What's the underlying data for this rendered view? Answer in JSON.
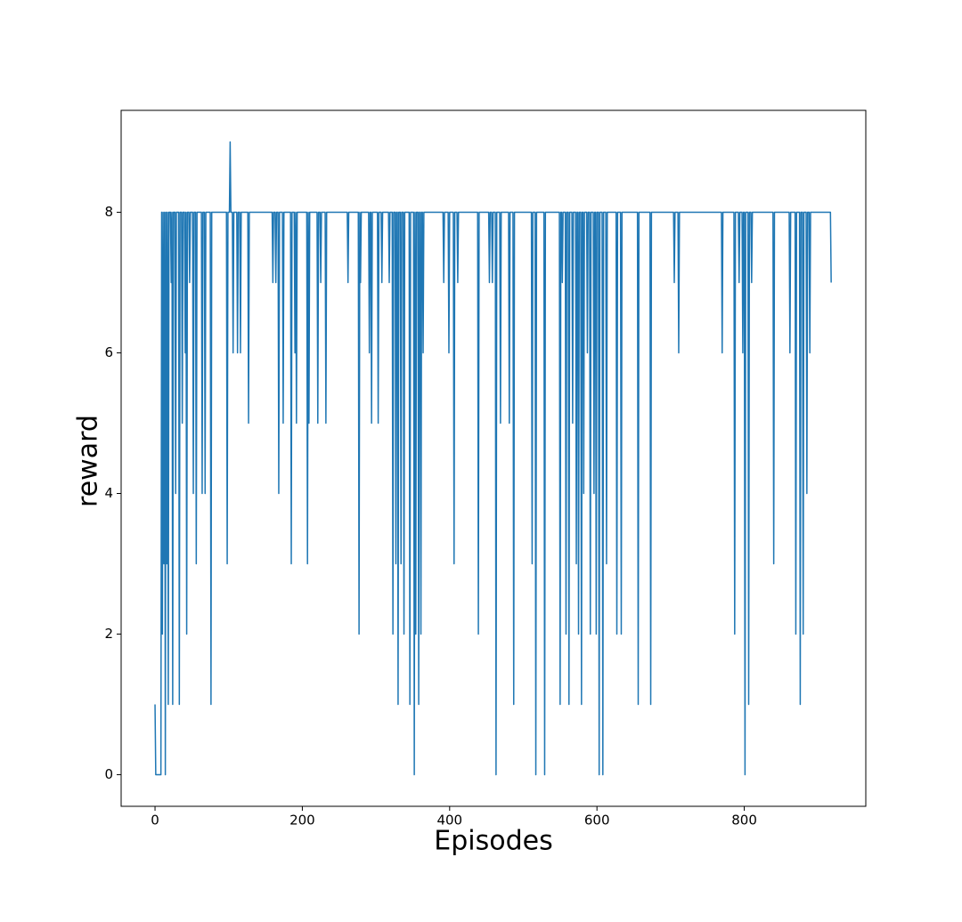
{
  "chart_data": {
    "type": "line",
    "xlabel": "Episodes",
    "ylabel": "reward",
    "xlim": [
      -46,
      965
    ],
    "ylim": [
      -0.45,
      9.45
    ],
    "xticks": [
      0,
      200,
      400,
      600,
      800
    ],
    "yticks": [
      0,
      2,
      4,
      6,
      8
    ],
    "series": [
      {
        "color": "#1f77b4",
        "x": [
          0,
          1,
          8,
          9,
          10,
          11,
          12,
          13,
          14,
          15,
          16,
          17,
          18,
          19,
          21,
          22,
          23,
          24,
          25,
          27,
          28,
          29,
          32,
          33,
          34,
          36,
          37,
          38,
          40,
          41,
          42,
          43,
          44,
          46,
          47,
          48,
          51,
          52,
          53,
          55,
          56,
          57,
          63,
          64,
          65,
          67,
          68,
          69,
          75,
          76,
          77,
          97,
          98,
          99,
          101,
          102,
          103,
          105,
          106,
          107,
          111,
          112,
          113,
          115,
          116,
          117,
          126,
          127,
          128,
          159,
          160,
          161,
          163,
          164,
          165,
          167,
          168,
          169,
          173,
          174,
          175,
          184,
          185,
          186,
          189,
          190,
          191,
          192,
          193,
          206,
          207,
          208,
          209,
          210,
          220,
          221,
          222,
          224,
          225,
          226,
          231,
          232,
          233,
          261,
          262,
          263,
          276,
          277,
          278,
          279,
          280,
          290,
          291,
          292,
          293,
          294,
          295,
          302,
          303,
          304,
          307,
          308,
          309,
          317,
          318,
          319,
          322,
          323,
          324,
          326,
          327,
          328,
          329,
          330,
          331,
          333,
          334,
          335,
          337,
          338,
          339,
          345,
          346,
          347,
          351,
          352,
          353,
          354,
          355,
          357,
          358,
          359,
          360,
          361,
          362,
          363,
          364,
          365,
          391,
          392,
          393,
          398,
          399,
          400,
          405,
          406,
          407,
          410,
          411,
          412,
          438,
          439,
          440,
          453,
          454,
          455,
          457,
          458,
          459,
          462,
          463,
          464,
          468,
          469,
          470,
          480,
          481,
          482,
          486,
          487,
          488,
          511,
          512,
          513,
          516,
          517,
          518,
          528,
          529,
          530,
          549,
          550,
          551,
          552,
          553,
          554,
          557,
          558,
          559,
          561,
          562,
          563,
          566,
          567,
          568,
          571,
          572,
          573,
          574,
          575,
          576,
          578,
          579,
          580,
          581,
          582,
          583,
          586,
          587,
          588,
          590,
          591,
          592,
          595,
          596,
          597,
          598,
          599,
          600,
          602,
          603,
          604,
          607,
          608,
          609,
          612,
          613,
          614,
          626,
          627,
          628,
          632,
          633,
          634,
          655,
          656,
          657,
          672,
          673,
          674,
          704,
          705,
          706,
          710,
          711,
          712,
          769,
          770,
          771,
          786,
          787,
          788,
          792,
          793,
          794,
          797,
          798,
          799,
          800,
          801,
          802,
          805,
          806,
          807,
          809,
          810,
          811,
          839,
          840,
          841,
          861,
          862,
          863,
          869,
          870,
          871,
          875,
          876,
          877,
          879,
          880,
          881,
          884,
          885,
          886,
          888,
          889,
          890,
          917,
          918
        ],
        "values": [
          1,
          0,
          0,
          8,
          2,
          8,
          3,
          8,
          0,
          8,
          3,
          8,
          1,
          8,
          8,
          7,
          8,
          1,
          8,
          8,
          4,
          8,
          8,
          1,
          8,
          8,
          5,
          8,
          8,
          6,
          8,
          2,
          8,
          8,
          7,
          8,
          8,
          4,
          8,
          8,
          3,
          8,
          8,
          4,
          8,
          8,
          4,
          8,
          8,
          1,
          8,
          8,
          3,
          8,
          8,
          9,
          8,
          8,
          6,
          8,
          8,
          6,
          8,
          8,
          6,
          8,
          8,
          5,
          8,
          8,
          7,
          8,
          8,
          7,
          8,
          8,
          4,
          8,
          8,
          5,
          8,
          8,
          3,
          8,
          8,
          6,
          8,
          5,
          8,
          8,
          3,
          8,
          5,
          8,
          8,
          5,
          8,
          8,
          7,
          8,
          8,
          5,
          8,
          8,
          7,
          8,
          8,
          2,
          8,
          7,
          8,
          8,
          6,
          8,
          8,
          5,
          8,
          8,
          5,
          8,
          8,
          7,
          8,
          8,
          7,
          8,
          8,
          2,
          8,
          8,
          3,
          8,
          8,
          1,
          8,
          8,
          3,
          8,
          8,
          2,
          8,
          8,
          1,
          8,
          8,
          0,
          8,
          2,
          8,
          8,
          1,
          8,
          8,
          2,
          8,
          8,
          6,
          8,
          8,
          7,
          8,
          8,
          6,
          8,
          8,
          3,
          8,
          8,
          7,
          8,
          8,
          2,
          8,
          8,
          7,
          8,
          8,
          7,
          8,
          8,
          0,
          8,
          8,
          5,
          8,
          8,
          5,
          8,
          8,
          1,
          8,
          8,
          3,
          8,
          8,
          0,
          8,
          8,
          0,
          8,
          8,
          1,
          8,
          8,
          7,
          8,
          8,
          2,
          8,
          8,
          1,
          8,
          8,
          5,
          8,
          8,
          3,
          8,
          8,
          2,
          8,
          8,
          1,
          8,
          8,
          4,
          8,
          8,
          6,
          8,
          8,
          2,
          8,
          8,
          4,
          8,
          8,
          2,
          8,
          8,
          0,
          8,
          8,
          0,
          8,
          8,
          3,
          8,
          8,
          2,
          8,
          8,
          2,
          8,
          8,
          1,
          8,
          8,
          1,
          8,
          8,
          7,
          8,
          8,
          6,
          8,
          8,
          6,
          8,
          8,
          2,
          8,
          8,
          7,
          8,
          8,
          6,
          8,
          8,
          0,
          8,
          8,
          1,
          8,
          8,
          7,
          8,
          8,
          3,
          8,
          8,
          6,
          8,
          8,
          2,
          8,
          8,
          1,
          8,
          8,
          2,
          8,
          8,
          4,
          8,
          8,
          6,
          8,
          8,
          7
        ]
      }
    ]
  }
}
